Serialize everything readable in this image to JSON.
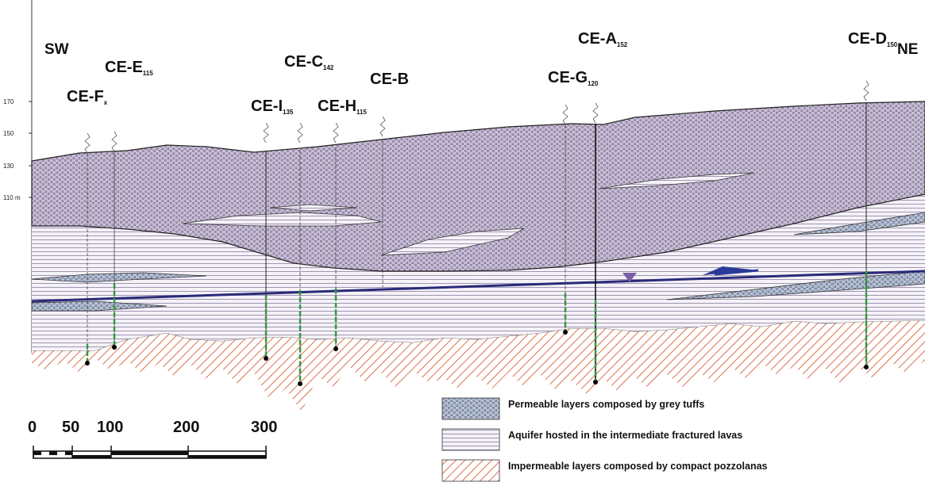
{
  "orientation": {
    "left": "SW",
    "right": "NE"
  },
  "elevation_axis": {
    "ticks": [
      "170",
      "150",
      "130",
      "110 m"
    ]
  },
  "wells": [
    {
      "id": "CE-F",
      "sub": "x"
    },
    {
      "id": "CE-E",
      "sub": "115"
    },
    {
      "id": "CE-I",
      "sub": "135"
    },
    {
      "id": "CE-C",
      "sub": "142"
    },
    {
      "id": "CE-H",
      "sub": "115"
    },
    {
      "id": "CE-B",
      "sub": ""
    },
    {
      "id": "CE-G",
      "sub": "120"
    },
    {
      "id": "CE-A",
      "sub": "152"
    },
    {
      "id": "CE-D",
      "sub": "150"
    }
  ],
  "scale_bar": {
    "ticks": [
      "0",
      "50",
      "100",
      "200",
      "300"
    ]
  },
  "legend": [
    {
      "pattern": "grey-tuff",
      "label": "Permeable layers composed by grey tuffs"
    },
    {
      "pattern": "fractured-lava",
      "label": "Aquifer hosted in the intermediate fractured lavas"
    },
    {
      "pattern": "pozzolana",
      "label": "Impermeable layers composed by compact pozzolanas"
    }
  ],
  "colors": {
    "tuff": "#cbbfd8",
    "lava_hatch": "#8a7fa0",
    "pozzolana": "#d9714a",
    "water_table": "#2a2a7a",
    "screen": "#2e9b3a"
  }
}
